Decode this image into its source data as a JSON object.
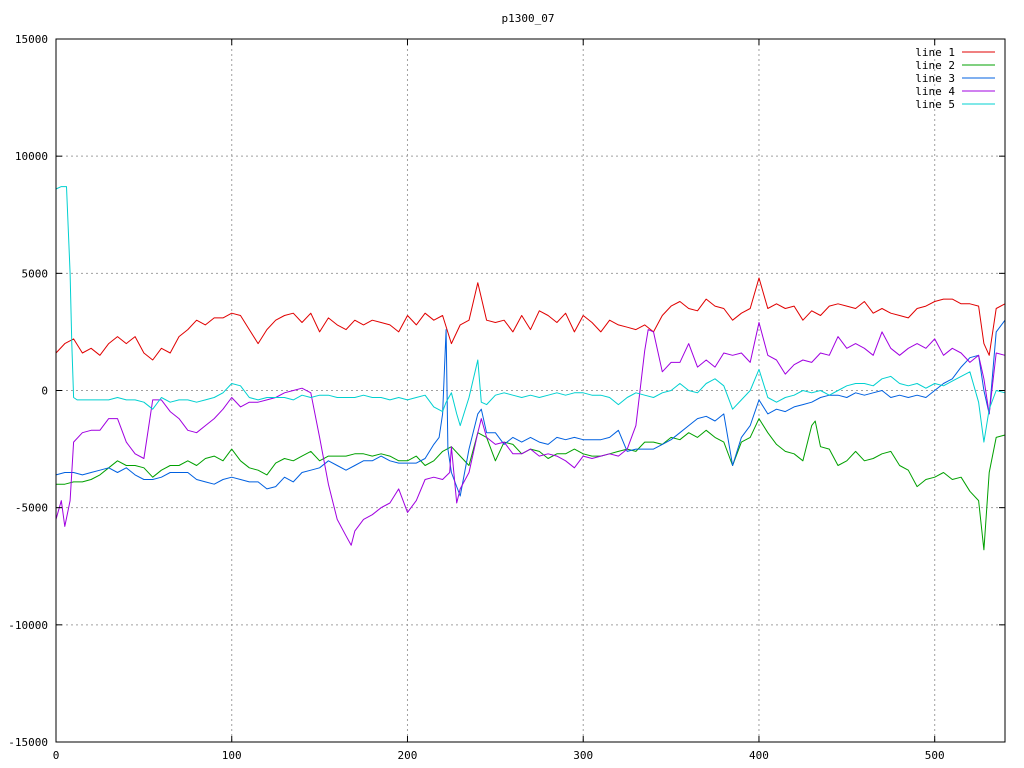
{
  "chart_data": {
    "type": "line",
    "title": "p1300_07",
    "xlabel": "",
    "ylabel": "",
    "xlim": [
      0,
      540
    ],
    "ylim": [
      -15000,
      15000
    ],
    "xticks": [
      0,
      100,
      200,
      300,
      400,
      500
    ],
    "yticks": [
      -15000,
      -10000,
      -5000,
      0,
      5000,
      10000,
      15000
    ],
    "grid": true,
    "legend_position": "top-right",
    "series": [
      {
        "name": "line 1",
        "color": "#e00000",
        "x": [
          0,
          5,
          10,
          15,
          20,
          25,
          30,
          35,
          40,
          45,
          50,
          55,
          60,
          65,
          70,
          75,
          80,
          85,
          90,
          95,
          100,
          105,
          110,
          115,
          120,
          125,
          130,
          135,
          140,
          145,
          150,
          155,
          160,
          165,
          170,
          175,
          180,
          185,
          190,
          195,
          200,
          205,
          210,
          215,
          220,
          225,
          230,
          235,
          240,
          245,
          250,
          255,
          260,
          265,
          270,
          275,
          280,
          285,
          290,
          295,
          300,
          305,
          310,
          315,
          320,
          325,
          330,
          335,
          340,
          345,
          350,
          355,
          360,
          365,
          370,
          375,
          380,
          385,
          390,
          395,
          400,
          405,
          410,
          415,
          420,
          425,
          430,
          435,
          440,
          445,
          450,
          455,
          460,
          465,
          470,
          475,
          480,
          485,
          490,
          495,
          500,
          505,
          510,
          515,
          520,
          525,
          528,
          531,
          535,
          540
        ],
        "y": [
          1600,
          2000,
          2200,
          1600,
          1800,
          1500,
          2000,
          2300,
          2000,
          2300,
          1600,
          1300,
          1800,
          1600,
          2300,
          2600,
          3000,
          2800,
          3100,
          3100,
          3300,
          3200,
          2600,
          2000,
          2600,
          3000,
          3200,
          3300,
          2900,
          3300,
          2500,
          3100,
          2800,
          2600,
          3000,
          2800,
          3000,
          2900,
          2800,
          2500,
          3200,
          2800,
          3300,
          3000,
          3200,
          2000,
          2800,
          3000,
          4600,
          3000,
          2900,
          3000,
          2500,
          3200,
          2600,
          3400,
          3200,
          2900,
          3300,
          2500,
          3200,
          2900,
          2500,
          3000,
          2800,
          2700,
          2600,
          2800,
          2500,
          3200,
          3600,
          3800,
          3500,
          3400,
          3900,
          3600,
          3500,
          3000,
          3300,
          3500,
          4800,
          3500,
          3700,
          3500,
          3600,
          3000,
          3400,
          3200,
          3600,
          3700,
          3600,
          3500,
          3800,
          3300,
          3500,
          3300,
          3200,
          3100,
          3500,
          3600,
          3800,
          3900,
          3900,
          3700,
          3700,
          3600,
          2000,
          1500,
          3500,
          3700
        ]
      },
      {
        "name": "line 2",
        "color": "#00a000",
        "x": [
          0,
          5,
          10,
          15,
          20,
          25,
          30,
          35,
          40,
          45,
          50,
          55,
          60,
          65,
          70,
          75,
          80,
          85,
          90,
          95,
          100,
          105,
          110,
          115,
          120,
          125,
          130,
          135,
          140,
          145,
          150,
          155,
          160,
          165,
          170,
          175,
          180,
          185,
          190,
          195,
          200,
          205,
          210,
          215,
          220,
          225,
          230,
          235,
          240,
          245,
          250,
          255,
          260,
          265,
          270,
          275,
          280,
          285,
          290,
          295,
          300,
          305,
          310,
          315,
          320,
          325,
          330,
          335,
          340,
          345,
          350,
          355,
          360,
          365,
          370,
          375,
          380,
          385,
          390,
          395,
          400,
          405,
          410,
          415,
          420,
          425,
          430,
          432,
          435,
          440,
          445,
          450,
          455,
          460,
          465,
          470,
          475,
          480,
          485,
          490,
          495,
          500,
          505,
          510,
          515,
          520,
          525,
          528,
          531,
          535,
          540
        ],
        "y": [
          -4000,
          -4000,
          -3900,
          -3900,
          -3800,
          -3600,
          -3300,
          -3000,
          -3200,
          -3200,
          -3300,
          -3700,
          -3400,
          -3200,
          -3200,
          -3000,
          -3200,
          -2900,
          -2800,
          -3000,
          -2500,
          -3000,
          -3300,
          -3400,
          -3600,
          -3100,
          -2900,
          -3000,
          -2800,
          -2600,
          -3000,
          -2800,
          -2800,
          -2800,
          -2700,
          -2700,
          -2800,
          -2700,
          -2800,
          -3000,
          -3000,
          -2800,
          -3200,
          -3000,
          -2600,
          -2400,
          -2800,
          -3200,
          -1800,
          -2000,
          -3000,
          -2200,
          -2300,
          -2700,
          -2500,
          -2600,
          -2900,
          -2700,
          -2700,
          -2500,
          -2700,
          -2800,
          -2800,
          -2700,
          -2600,
          -2500,
          -2600,
          -2200,
          -2200,
          -2300,
          -2000,
          -2100,
          -1800,
          -2000,
          -1700,
          -2000,
          -2200,
          -3200,
          -2200,
          -2000,
          -1200,
          -1800,
          -2300,
          -2600,
          -2700,
          -3000,
          -1500,
          -1300,
          -2400,
          -2500,
          -3200,
          -3000,
          -2600,
          -3000,
          -2900,
          -2700,
          -2600,
          -3200,
          -3400,
          -4100,
          -3800,
          -3700,
          -3500,
          -3800,
          -3700,
          -4300,
          -4700,
          -6800,
          -3500,
          -2000,
          -1900
        ]
      },
      {
        "name": "line 3",
        "color": "#0060e0",
        "x": [
          0,
          5,
          10,
          15,
          20,
          25,
          30,
          35,
          40,
          45,
          50,
          55,
          60,
          65,
          70,
          75,
          80,
          85,
          90,
          95,
          100,
          105,
          110,
          115,
          120,
          125,
          130,
          135,
          140,
          145,
          150,
          155,
          160,
          165,
          170,
          175,
          180,
          185,
          190,
          195,
          200,
          205,
          210,
          215,
          218,
          220,
          222,
          223,
          225,
          230,
          235,
          240,
          242,
          245,
          250,
          255,
          260,
          265,
          270,
          275,
          280,
          285,
          290,
          295,
          300,
          305,
          310,
          315,
          320,
          325,
          330,
          335,
          340,
          345,
          350,
          355,
          360,
          365,
          370,
          375,
          380,
          385,
          390,
          395,
          400,
          405,
          410,
          415,
          420,
          425,
          430,
          435,
          440,
          445,
          450,
          455,
          460,
          465,
          470,
          475,
          480,
          485,
          490,
          495,
          500,
          505,
          510,
          515,
          520,
          525,
          528,
          531,
          535,
          540
        ],
        "y": [
          -3600,
          -3500,
          -3500,
          -3600,
          -3500,
          -3400,
          -3300,
          -3500,
          -3300,
          -3600,
          -3800,
          -3800,
          -3700,
          -3500,
          -3500,
          -3500,
          -3800,
          -3900,
          -4000,
          -3800,
          -3700,
          -3800,
          -3900,
          -3900,
          -4200,
          -4100,
          -3700,
          -3900,
          -3500,
          -3400,
          -3300,
          -3000,
          -3200,
          -3400,
          -3200,
          -3000,
          -3000,
          -2800,
          -3000,
          -3100,
          -3100,
          -3100,
          -2900,
          -2300,
          -2000,
          -1000,
          2600,
          -2500,
          -3500,
          -4500,
          -2500,
          -1000,
          -800,
          -1800,
          -1800,
          -2300,
          -2000,
          -2200,
          -2000,
          -2200,
          -2300,
          -2000,
          -2100,
          -2000,
          -2100,
          -2100,
          -2100,
          -2000,
          -1700,
          -2600,
          -2500,
          -2500,
          -2500,
          -2300,
          -2100,
          -1800,
          -1500,
          -1200,
          -1100,
          -1300,
          -1000,
          -3200,
          -2000,
          -1500,
          -400,
          -1000,
          -800,
          -900,
          -700,
          -600,
          -500,
          -300,
          -200,
          -200,
          -300,
          -100,
          -200,
          -100,
          0,
          -300,
          -200,
          -300,
          -200,
          -300,
          0,
          300,
          500,
          1000,
          1400,
          1500,
          0,
          -1000,
          2500,
          3000
        ]
      },
      {
        "name": "line 4",
        "color": "#a000e0",
        "x": [
          0,
          3,
          5,
          8,
          10,
          15,
          20,
          25,
          30,
          35,
          40,
          45,
          50,
          55,
          60,
          65,
          70,
          75,
          80,
          85,
          90,
          95,
          100,
          105,
          110,
          115,
          120,
          125,
          130,
          135,
          140,
          145,
          150,
          155,
          160,
          165,
          168,
          170,
          175,
          180,
          185,
          190,
          195,
          200,
          205,
          210,
          215,
          220,
          224,
          225,
          228,
          230,
          235,
          240,
          242,
          245,
          250,
          255,
          260,
          265,
          270,
          275,
          280,
          285,
          290,
          295,
          300,
          305,
          310,
          315,
          320,
          325,
          330,
          335,
          337,
          340,
          345,
          350,
          355,
          360,
          365,
          370,
          375,
          380,
          385,
          390,
          395,
          400,
          405,
          410,
          415,
          420,
          425,
          430,
          435,
          440,
          445,
          450,
          455,
          460,
          465,
          470,
          475,
          480,
          485,
          490,
          495,
          500,
          505,
          510,
          515,
          520,
          525,
          528,
          531,
          535,
          540
        ],
        "y": [
          -5500,
          -4700,
          -5800,
          -4700,
          -2200,
          -1800,
          -1700,
          -1700,
          -1200,
          -1200,
          -2200,
          -2700,
          -2900,
          -400,
          -400,
          -900,
          -1200,
          -1700,
          -1800,
          -1500,
          -1200,
          -800,
          -300,
          -700,
          -500,
          -500,
          -400,
          -300,
          -100,
          0,
          100,
          -100,
          -2000,
          -4000,
          -5500,
          -6200,
          -6600,
          -6000,
          -5500,
          -5300,
          -5000,
          -4800,
          -4200,
          -5200,
          -4700,
          -3800,
          -3700,
          -3800,
          -3500,
          -2400,
          -4800,
          -4200,
          -3500,
          -1800,
          -1200,
          -2000,
          -2300,
          -2200,
          -2700,
          -2700,
          -2500,
          -2800,
          -2700,
          -2800,
          -3000,
          -3300,
          -2800,
          -2900,
          -2800,
          -2700,
          -2800,
          -2500,
          -1500,
          1700,
          2600,
          2500,
          800,
          1200,
          1200,
          2000,
          1000,
          1300,
          1000,
          1600,
          1500,
          1600,
          1200,
          2900,
          1500,
          1300,
          700,
          1100,
          1300,
          1200,
          1600,
          1500,
          2300,
          1800,
          2000,
          1800,
          1500,
          2500,
          1800,
          1500,
          1800,
          2000,
          1800,
          2200,
          1500,
          1800,
          1600,
          1200,
          1500,
          500,
          -1000,
          1600,
          1500
        ]
      },
      {
        "name": "line 5",
        "color": "#00d0d0",
        "x": [
          0,
          3,
          6,
          8,
          9,
          10,
          12,
          15,
          20,
          25,
          30,
          35,
          40,
          45,
          50,
          55,
          60,
          65,
          70,
          75,
          80,
          85,
          90,
          95,
          100,
          105,
          110,
          115,
          120,
          125,
          130,
          135,
          140,
          145,
          150,
          155,
          160,
          165,
          170,
          175,
          180,
          185,
          190,
          195,
          200,
          205,
          210,
          215,
          220,
          222,
          225,
          228,
          230,
          235,
          240,
          242,
          245,
          250,
          255,
          260,
          265,
          270,
          275,
          280,
          285,
          290,
          295,
          300,
          305,
          310,
          315,
          320,
          325,
          330,
          335,
          340,
          345,
          350,
          355,
          360,
          365,
          370,
          375,
          380,
          385,
          390,
          395,
          400,
          405,
          410,
          415,
          420,
          425,
          430,
          435,
          440,
          445,
          450,
          455,
          460,
          465,
          470,
          475,
          480,
          485,
          490,
          495,
          500,
          505,
          510,
          515,
          520,
          525,
          528,
          531,
          535,
          540
        ],
        "y": [
          8600,
          8700,
          8700,
          5000,
          2000,
          -300,
          -400,
          -400,
          -400,
          -400,
          -400,
          -300,
          -400,
          -400,
          -500,
          -800,
          -300,
          -500,
          -400,
          -400,
          -500,
          -400,
          -300,
          -100,
          300,
          200,
          -300,
          -400,
          -300,
          -300,
          -300,
          -400,
          -200,
          -300,
          -200,
          -200,
          -300,
          -300,
          -300,
          -200,
          -300,
          -300,
          -400,
          -300,
          -400,
          -300,
          -200,
          -700,
          -900,
          -500,
          -100,
          -1000,
          -1500,
          -300,
          1300,
          -500,
          -600,
          -200,
          -100,
          -200,
          -300,
          -200,
          -300,
          -200,
          -100,
          -200,
          -100,
          -100,
          -200,
          -200,
          -300,
          -600,
          -300,
          -100,
          -200,
          -300,
          -100,
          0,
          300,
          0,
          -100,
          300,
          500,
          200,
          -800,
          -400,
          0,
          900,
          -300,
          -500,
          -300,
          -200,
          0,
          -100,
          0,
          -200,
          0,
          200,
          300,
          300,
          200,
          500,
          600,
          300,
          200,
          300,
          100,
          300,
          200,
          400,
          600,
          800,
          -500,
          -2200,
          -800,
          0,
          -100
        ]
      }
    ]
  }
}
